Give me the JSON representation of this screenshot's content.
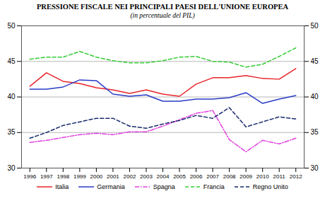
{
  "chart_data": {
    "type": "line",
    "title": "PRESSIONE FISCALE NEI PRINCIPALI PAESI DELL'UNIONE EUROPEA",
    "subtitle": "(in percentuale del PIL)",
    "x": [
      1996,
      1997,
      1998,
      1999,
      2000,
      2001,
      2002,
      2003,
      2004,
      2005,
      2006,
      2007,
      2008,
      2009,
      2010,
      2011,
      2012
    ],
    "xlim": [
      1995.5,
      2012.5
    ],
    "xticks": [
      1996,
      1997,
      1998,
      1999,
      2000,
      2001,
      2002,
      2003,
      2004,
      2005,
      2006,
      2007,
      2008,
      2009,
      2010,
      2011,
      2012
    ],
    "ylim": [
      30,
      50
    ],
    "yticks": [
      30,
      35,
      40,
      45,
      50
    ],
    "grid": true,
    "legend": "bottom",
    "series": [
      {
        "name": "Italia",
        "color": "#e8242b",
        "line_style": "solid",
        "values": [
          41.5,
          43.4,
          42.2,
          41.9,
          41.3,
          41.0,
          40.5,
          41.0,
          40.4,
          40.1,
          41.8,
          42.7,
          42.7,
          43.0,
          42.6,
          42.5,
          44.0
        ]
      },
      {
        "name": "Germania",
        "color": "#2a3cc8",
        "line_style": "solid",
        "values": [
          41.1,
          41.1,
          41.4,
          42.4,
          42.3,
          40.4,
          40.1,
          40.3,
          39.4,
          39.4,
          39.7,
          39.7,
          39.9,
          40.6,
          39.1,
          39.7,
          40.2
        ]
      },
      {
        "name": "Spagna",
        "color": "#e040e0",
        "line_style": "dashdot",
        "values": [
          33.6,
          33.9,
          34.3,
          34.7,
          34.9,
          34.7,
          35.1,
          35.1,
          35.9,
          36.8,
          37.7,
          38.1,
          34.0,
          32.3,
          33.9,
          33.4,
          34.2
        ]
      },
      {
        "name": "Francia",
        "color": "#33cc33",
        "line_style": "dashed",
        "values": [
          45.3,
          45.6,
          45.6,
          46.4,
          45.6,
          45.1,
          44.8,
          44.8,
          45.1,
          45.6,
          45.7,
          45.0,
          44.9,
          44.2,
          44.6,
          45.7,
          46.9
        ]
      },
      {
        "name": "Regno Unito",
        "color": "#1a2a6c",
        "line_style": "dashed",
        "values": [
          34.2,
          35.0,
          36.0,
          36.5,
          37.0,
          37.0,
          35.9,
          35.6,
          36.2,
          36.7,
          37.4,
          37.0,
          38.5,
          35.8,
          36.5,
          37.2,
          36.9
        ]
      }
    ]
  }
}
